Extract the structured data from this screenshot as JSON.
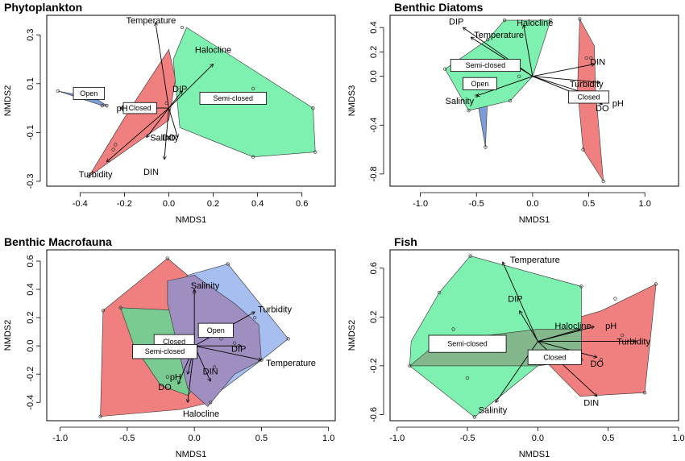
{
  "chart_data": [
    {
      "type": "scatter",
      "title": "Phytoplankton",
      "xlabel": "NMDS1",
      "ylabel": "NMDS2",
      "xlim": [
        -0.55,
        0.75
      ],
      "ylim": [
        -0.32,
        0.38
      ],
      "xticks": [
        -0.4,
        -0.2,
        0.0,
        0.2,
        0.4,
        0.6
      ],
      "xtick_labels": [
        "-0.4",
        "-0.2",
        "0.0",
        "0.2",
        "0.4",
        "0.6"
      ],
      "yticks": [
        -0.3,
        -0.1,
        0.1,
        0.3
      ],
      "ytick_labels": [
        "-0.3",
        "-0.1",
        "0.1",
        "0.3"
      ],
      "hulls": [
        {
          "group": "Open",
          "color": "#7b9cd6",
          "points": [
            [
              -0.5,
              0.07
            ],
            [
              -0.3,
              0.01
            ],
            [
              -0.28,
              0.01
            ],
            [
              -0.33,
              0.04
            ]
          ]
        },
        {
          "group": "Closed",
          "color": "#f08080",
          "points": [
            [
              0.0,
              0.24
            ],
            [
              0.03,
              0.12
            ],
            [
              0.0,
              -0.05
            ],
            [
              -0.36,
              -0.28
            ],
            [
              -0.2,
              -0.04
            ]
          ]
        },
        {
          "group": "Semi-closed",
          "color": "#7ef0b0",
          "points": [
            [
              0.08,
              0.33
            ],
            [
              0.65,
              0.0
            ],
            [
              0.66,
              -0.18
            ],
            [
              0.38,
              -0.2
            ],
            [
              0.05,
              -0.08
            ],
            [
              0.03,
              0.1
            ],
            [
              0.02,
              0.2
            ]
          ]
        }
      ],
      "sites": [
        {
          "x": -0.5,
          "y": 0.07
        },
        {
          "x": -0.3,
          "y": 0.01
        },
        {
          "x": -0.28,
          "y": 0.01
        },
        {
          "x": -0.33,
          "y": 0.04
        },
        {
          "x": -0.36,
          "y": -0.28
        },
        {
          "x": -0.24,
          "y": -0.15
        },
        {
          "x": -0.25,
          "y": -0.17
        },
        {
          "x": -0.01,
          "y": 0.02
        },
        {
          "x": 0.38,
          "y": 0.08
        },
        {
          "x": 0.65,
          "y": 0.0
        },
        {
          "x": 0.66,
          "y": -0.18
        },
        {
          "x": 0.38,
          "y": -0.2
        },
        {
          "x": 0.06,
          "y": 0.33
        }
      ],
      "vectors": [
        {
          "name": "Temperature",
          "x": -0.06,
          "y": 0.35,
          "lx": -0.08,
          "ly": 0.36
        },
        {
          "name": "Halocline",
          "x": 0.2,
          "y": 0.18,
          "lx": 0.2,
          "ly": 0.24
        },
        {
          "name": "DIP",
          "x": 0.06,
          "y": 0.07,
          "lx": 0.05,
          "ly": 0.08
        },
        {
          "name": "pH",
          "x": -0.22,
          "y": 0.0,
          "lx": -0.21,
          "ly": 0.0
        },
        {
          "name": "Salinity",
          "x": -0.1,
          "y": -0.12,
          "lx": -0.02,
          "ly": -0.12
        },
        {
          "name": "DO",
          "x": 0.04,
          "y": -0.12,
          "lx": 0.0,
          "ly": -0.12
        },
        {
          "name": "Turbidity",
          "x": -0.28,
          "y": -0.22,
          "lx": -0.33,
          "ly": -0.27
        },
        {
          "name": "DIN",
          "x": -0.02,
          "y": -0.21,
          "lx": -0.08,
          "ly": -0.26
        }
      ],
      "group_labels": [
        {
          "name": "Open",
          "x": -0.36,
          "y": 0.06,
          "w": 0.14,
          "h": 0.05
        },
        {
          "name": "Closed",
          "x": -0.13,
          "y": 0.0,
          "w": 0.15,
          "h": 0.045
        },
        {
          "name": "Semi-closed",
          "x": 0.29,
          "y": 0.04,
          "w": 0.3,
          "h": 0.05
        }
      ]
    },
    {
      "type": "scatter",
      "title": "Benthic Diatoms",
      "xlabel": "NMDS1",
      "ylabel": "NMDS3",
      "xlim": [
        -1.27,
        1.3
      ],
      "ylim": [
        -0.9,
        0.5
      ],
      "xticks": [
        -1.0,
        -0.5,
        0.0,
        0.5,
        1.0
      ],
      "xtick_labels": [
        "-1.0",
        "-0.5",
        "0.0",
        "0.5",
        "1.0"
      ],
      "yticks": [
        -0.8,
        -0.4,
        0.0,
        0.2,
        0.4
      ],
      "ytick_labels": [
        "-0.8",
        "-0.4",
        "0.0",
        "0.2",
        "0.4"
      ],
      "hulls": [
        {
          "group": "Open",
          "color": "#7b9cd6",
          "points": [
            [
              -0.5,
              -0.16
            ],
            [
              -0.42,
              -0.58
            ],
            [
              -0.4,
              -0.14
            ]
          ]
        },
        {
          "group": "Semi-closed",
          "color": "#7ef0b0",
          "points": [
            [
              -0.4,
              0.3
            ],
            [
              -0.25,
              0.46
            ],
            [
              0.16,
              0.46
            ],
            [
              0.0,
              0.0
            ],
            [
              -0.2,
              -0.2
            ],
            [
              -0.57,
              -0.28
            ],
            [
              -0.78,
              0.06
            ]
          ]
        },
        {
          "group": "Closed",
          "color": "#f08080",
          "points": [
            [
              0.42,
              0.47
            ],
            [
              0.55,
              0.25
            ],
            [
              0.56,
              -0.1
            ],
            [
              0.63,
              -0.86
            ],
            [
              0.45,
              -0.6
            ],
            [
              0.4,
              -0.1
            ]
          ]
        }
      ],
      "sites": [
        {
          "x": -0.4,
          "y": 0.3
        },
        {
          "x": -0.25,
          "y": 0.46
        },
        {
          "x": 0.16,
          "y": 0.46
        },
        {
          "x": -0.78,
          "y": 0.06
        },
        {
          "x": -0.57,
          "y": -0.28
        },
        {
          "x": -0.42,
          "y": -0.58
        },
        {
          "x": -0.5,
          "y": -0.16
        },
        {
          "x": -0.2,
          "y": -0.2
        },
        {
          "x": -0.12,
          "y": 0.0
        },
        {
          "x": 0.42,
          "y": 0.47
        },
        {
          "x": 0.48,
          "y": 0.15
        },
        {
          "x": 0.52,
          "y": 0.15
        },
        {
          "x": 0.63,
          "y": -0.86
        },
        {
          "x": 0.45,
          "y": -0.6
        }
      ],
      "vectors": [
        {
          "name": "DIP",
          "x": -0.62,
          "y": 0.4,
          "lx": -0.68,
          "ly": 0.45
        },
        {
          "name": "Temperature",
          "x": -0.55,
          "y": 0.32,
          "lx": -0.3,
          "ly": 0.34
        },
        {
          "name": "Halocline",
          "x": -0.08,
          "y": 0.42,
          "lx": 0.02,
          "ly": 0.44
        },
        {
          "name": "Salinity",
          "x": -0.5,
          "y": -0.16,
          "lx": -0.65,
          "ly": -0.2
        },
        {
          "name": "DIN",
          "x": 0.55,
          "y": 0.1,
          "lx": 0.58,
          "ly": 0.12
        },
        {
          "name": "Turbidity",
          "x": 0.6,
          "y": -0.05,
          "lx": 0.48,
          "ly": -0.06
        },
        {
          "name": "DO",
          "x": 0.62,
          "y": -0.23,
          "lx": 0.62,
          "ly": -0.26
        },
        {
          "name": "pH",
          "x": 0.68,
          "y": -0.2,
          "lx": 0.76,
          "ly": -0.22
        }
      ],
      "group_labels": [
        {
          "name": "Semi-closed",
          "x": -0.42,
          "y": 0.09,
          "w": 0.62,
          "h": 0.1
        },
        {
          "name": "Open",
          "x": -0.47,
          "y": -0.06,
          "w": 0.3,
          "h": 0.1
        },
        {
          "name": "Closed",
          "x": 0.5,
          "y": -0.17,
          "w": 0.36,
          "h": 0.1
        }
      ]
    },
    {
      "type": "scatter",
      "title": "Benthic Macrofauna",
      "xlabel": "NMDS1",
      "ylabel": "NMDS2",
      "xlim": [
        -1.1,
        1.05
      ],
      "ylim": [
        -0.53,
        0.68
      ],
      "xticks": [
        -1.0,
        -0.5,
        0.0,
        0.5,
        1.0
      ],
      "xtick_labels": [
        "-1.0",
        "-0.5",
        "0.0",
        "0.5",
        "1.0"
      ],
      "yticks": [
        -0.4,
        -0.2,
        0.0,
        0.2,
        0.4,
        0.6
      ],
      "ytick_labels": [
        "-0.4",
        "-0.2",
        "0.0",
        "0.2",
        "0.4",
        "0.6"
      ],
      "hulls": [
        {
          "group": "Closed",
          "color": "#f08080",
          "points": [
            [
              -0.7,
              -0.5
            ],
            [
              -0.68,
              0.25
            ],
            [
              -0.2,
              0.62
            ],
            [
              0.3,
              0.22
            ],
            [
              0.12,
              -0.4
            ],
            [
              -0.1,
              -0.45
            ]
          ]
        },
        {
          "group": "Open",
          "color": "#a7bff0",
          "points": [
            [
              -0.05,
              0.5
            ],
            [
              0.25,
              0.58
            ],
            [
              0.7,
              0.05
            ],
            [
              0.5,
              -0.1
            ],
            [
              0.15,
              -0.35
            ],
            [
              -0.2,
              0.3
            ]
          ]
        },
        {
          "group": "Semi-closed",
          "color": "#7acb92",
          "points": [
            [
              -0.55,
              0.27
            ],
            [
              -0.1,
              0.25
            ],
            [
              0.1,
              0.1
            ],
            [
              0.1,
              -0.2
            ],
            [
              -0.05,
              -0.35
            ],
            [
              -0.25,
              -0.28
            ],
            [
              -0.45,
              0.0
            ]
          ]
        },
        {
          "group": "Overlap",
          "color": "#9f8fc0",
          "points": [
            [
              -0.2,
              0.46
            ],
            [
              0.0,
              0.5
            ],
            [
              0.3,
              0.3
            ],
            [
              0.48,
              0.15
            ],
            [
              0.5,
              -0.1
            ],
            [
              0.3,
              -0.2
            ],
            [
              0.1,
              -0.43
            ],
            [
              -0.05,
              -0.3
            ],
            [
              -0.2,
              0.3
            ]
          ]
        }
      ],
      "sites": [
        {
          "x": -0.7,
          "y": -0.5
        },
        {
          "x": -0.68,
          "y": 0.25
        },
        {
          "x": -0.2,
          "y": 0.62
        },
        {
          "x": 0.25,
          "y": 0.58
        },
        {
          "x": 0.7,
          "y": 0.05
        },
        {
          "x": 0.5,
          "y": -0.1
        },
        {
          "x": 0.12,
          "y": -0.4
        },
        {
          "x": -0.55,
          "y": 0.27
        },
        {
          "x": 0.0,
          "y": 0.38
        },
        {
          "x": 0.2,
          "y": 0.05
        },
        {
          "x": 0.3,
          "y": 0.02
        },
        {
          "x": 0.15,
          "y": -0.15
        },
        {
          "x": -0.2,
          "y": -0.22
        },
        {
          "x": 0.45,
          "y": 0.2
        }
      ],
      "vectors": [
        {
          "name": "Salinity",
          "x": 0.0,
          "y": 0.4,
          "lx": 0.08,
          "ly": 0.43
        },
        {
          "name": "Turbidity",
          "x": 0.45,
          "y": 0.24,
          "lx": 0.6,
          "ly": 0.26
        },
        {
          "name": "DIP",
          "x": 0.35,
          "y": 0.0,
          "lx": 0.33,
          "ly": -0.02
        },
        {
          "name": "Temperature",
          "x": 0.5,
          "y": -0.1,
          "lx": 0.72,
          "ly": -0.12
        },
        {
          "name": "DIN",
          "x": 0.12,
          "y": -0.25,
          "lx": 0.12,
          "ly": -0.18
        },
        {
          "name": "pH",
          "x": -0.05,
          "y": -0.2,
          "lx": -0.14,
          "ly": -0.22
        },
        {
          "name": "DO",
          "x": -0.12,
          "y": -0.27,
          "lx": -0.22,
          "ly": -0.29
        },
        {
          "name": "Halocline",
          "x": -0.05,
          "y": -0.4,
          "lx": 0.05,
          "ly": -0.48
        }
      ],
      "group_labels": [
        {
          "name": "Open",
          "x": 0.16,
          "y": 0.11,
          "w": 0.26,
          "h": 0.1
        },
        {
          "name": "Closed",
          "x": -0.15,
          "y": 0.03,
          "w": 0.3,
          "h": 0.1
        },
        {
          "name": "Semi-closed",
          "x": -0.22,
          "y": -0.04,
          "w": 0.48,
          "h": 0.1
        }
      ]
    },
    {
      "type": "scatter",
      "title": "Fish",
      "xlabel": "NMDS1",
      "ylabel": "NMDS2",
      "xlim": [
        -1.05,
        1.0
      ],
      "ylim": [
        -0.65,
        0.75
      ],
      "xticks": [
        -1.0,
        -0.5,
        0.0,
        0.5,
        1.0
      ],
      "xtick_labels": [
        "-1.0",
        "-0.5",
        "0.0",
        "0.5",
        "1.0"
      ],
      "yticks": [
        -0.6,
        -0.2,
        0.2,
        0.6
      ],
      "ytick_labels": [
        "-0.6",
        "-0.2",
        "0.2",
        "0.6"
      ],
      "hulls": [
        {
          "group": "Closed",
          "color": "#f08080",
          "points": [
            [
              0.0,
              0.1
            ],
            [
              0.45,
              0.25
            ],
            [
              0.84,
              0.47
            ],
            [
              0.76,
              -0.42
            ],
            [
              0.3,
              -0.45
            ],
            [
              0.0,
              -0.1
            ]
          ]
        },
        {
          "group": "Semi-closed",
          "color": "#7ef0b0",
          "points": [
            [
              -0.48,
              0.7
            ],
            [
              0.31,
              0.45
            ],
            [
              0.31,
              -0.15
            ],
            [
              0.0,
              -0.2
            ],
            [
              -0.45,
              -0.62
            ],
            [
              -0.91,
              -0.2
            ],
            [
              -0.9,
              0.0
            ],
            [
              -0.7,
              0.4
            ]
          ]
        },
        {
          "group": "Overlap",
          "color": "#83b88d",
          "points": [
            [
              -0.91,
              -0.2
            ],
            [
              0.0,
              -0.2
            ],
            [
              0.31,
              -0.15
            ],
            [
              0.31,
              0.1
            ],
            [
              0.0,
              0.1
            ],
            [
              -0.7,
              0.0
            ]
          ]
        }
      ],
      "sites": [
        {
          "x": -0.48,
          "y": 0.7
        },
        {
          "x": -0.7,
          "y": 0.4
        },
        {
          "x": -0.91,
          "y": -0.2
        },
        {
          "x": -0.45,
          "y": -0.62
        },
        {
          "x": -0.5,
          "y": -0.3
        },
        {
          "x": 0.31,
          "y": 0.45
        },
        {
          "x": 0.31,
          "y": -0.15
        },
        {
          "x": 0.84,
          "y": 0.47
        },
        {
          "x": 0.76,
          "y": -0.42
        },
        {
          "x": 0.55,
          "y": 0.35
        },
        {
          "x": 0.6,
          "y": 0.05
        },
        {
          "x": 0.45,
          "y": -0.15
        },
        {
          "x": -0.6,
          "y": 0.1
        }
      ],
      "vectors": [
        {
          "name": "Temperature",
          "x": -0.25,
          "y": 0.65,
          "lx": -0.02,
          "ly": 0.67
        },
        {
          "name": "DIP",
          "x": -0.13,
          "y": 0.25,
          "lx": -0.16,
          "ly": 0.35
        },
        {
          "name": "Halocline",
          "x": 0.3,
          "y": 0.1,
          "lx": 0.25,
          "ly": 0.13
        },
        {
          "name": "pH",
          "x": 0.4,
          "y": 0.12,
          "lx": 0.52,
          "ly": 0.13
        },
        {
          "name": "Turbidity",
          "x": 0.7,
          "y": 0.0,
          "lx": 0.68,
          "ly": 0.0
        },
        {
          "name": "DO",
          "x": 0.42,
          "y": -0.13,
          "lx": 0.42,
          "ly": -0.18
        },
        {
          "name": "DIN",
          "x": 0.42,
          "y": -0.45,
          "lx": 0.38,
          "ly": -0.5
        },
        {
          "name": "Salinity",
          "x": -0.3,
          "y": -0.5,
          "lx": -0.32,
          "ly": -0.56
        }
      ],
      "group_labels": [
        {
          "name": "Semi-closed",
          "x": -0.5,
          "y": -0.02,
          "w": 0.55,
          "h": 0.14
        },
        {
          "name": "Closed",
          "x": 0.12,
          "y": -0.13,
          "w": 0.38,
          "h": 0.12
        }
      ]
    }
  ]
}
